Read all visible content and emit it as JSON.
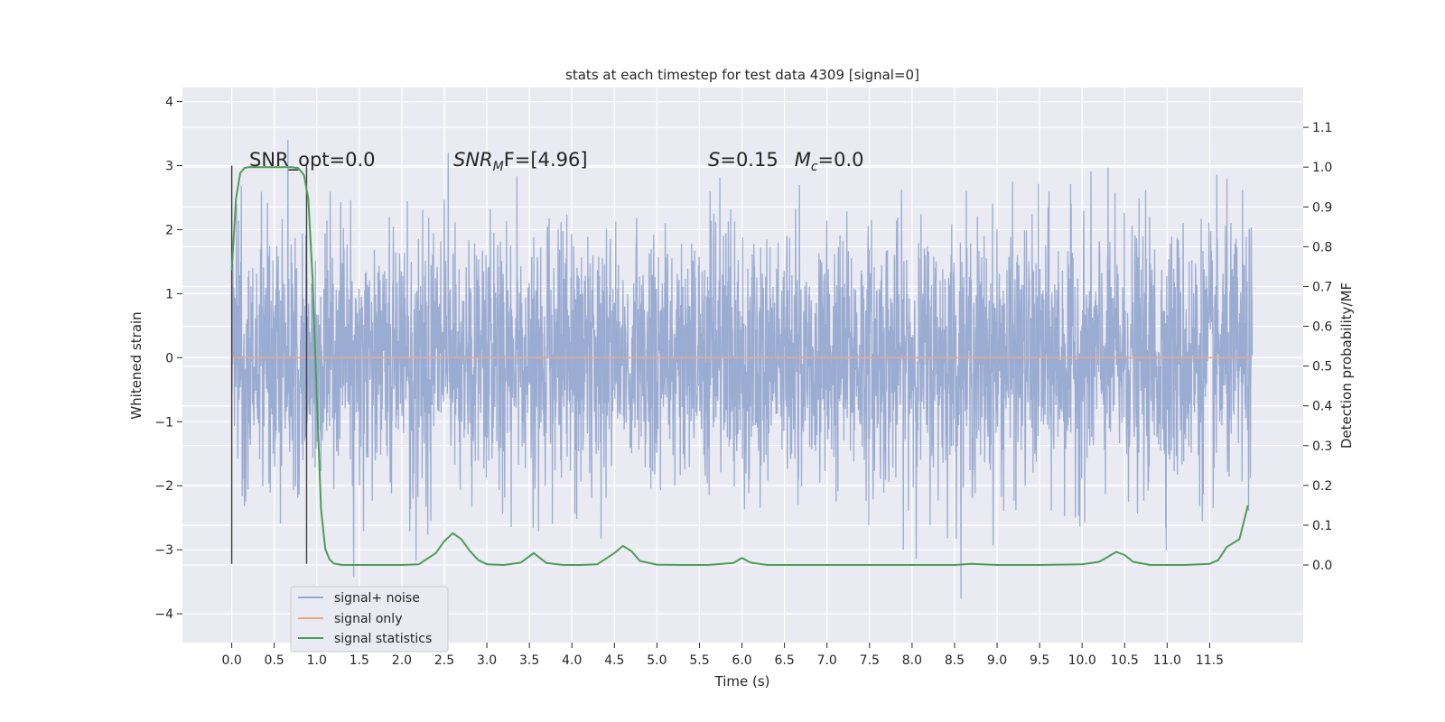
{
  "chart_data": {
    "type": "line",
    "title": "stats at each timestep for test data 4309 [signal=0]",
    "xlabel": "Time (s)",
    "ylabel": "Whitened strain",
    "y2label": "Detection probability/MF",
    "xlim": [
      -0.58,
      12.6
    ],
    "ylim": [
      -4.45,
      4.22
    ],
    "y2lim": [
      -0.195,
      1.2
    ],
    "xticks": [
      0.0,
      0.5,
      1.0,
      1.5,
      2.0,
      2.5,
      3.0,
      3.5,
      4.0,
      4.5,
      5.0,
      5.5,
      6.0,
      6.5,
      7.0,
      7.5,
      8.0,
      8.5,
      9.0,
      9.5,
      10.0,
      10.5,
      11.0,
      11.5
    ],
    "xtick_labels": [
      "0.0",
      "0.5",
      "1.0",
      "1.5",
      "2.0",
      "2.5",
      "3.0",
      "3.5",
      "4.0",
      "4.5",
      "5.0",
      "5.5",
      "6.0",
      "6.5",
      "7.0",
      "7.5",
      "8.0",
      "8.5",
      "9.0",
      "9.5",
      "10.0",
      "10.5",
      "11.0",
      "11.5"
    ],
    "yticks": [
      4,
      3,
      2,
      1,
      0,
      -1,
      -2,
      -3,
      -4
    ],
    "ytick_labels": [
      "4",
      "3",
      "2",
      "1",
      "0",
      "−1",
      "−2",
      "−3",
      "−4"
    ],
    "y2ticks": [
      1.1,
      1.0,
      0.9,
      0.8,
      0.7,
      0.6,
      0.5,
      0.4,
      0.3,
      0.2,
      0.1,
      0.0
    ],
    "y2tick_labels": [
      "1.1",
      "1.0",
      "0.9",
      "0.8",
      "0.7",
      "0.6",
      "0.5",
      "0.4",
      "0.3",
      "0.2",
      "0.1",
      "0.0"
    ],
    "grid": true,
    "legend_position": "lower-left",
    "annotations": {
      "snr_opt": "SNR_opt=0.0",
      "snr_mf": "SNR",
      "snr_mf_sub": "M",
      "snr_mf_rest": "F=[4.96]",
      "s_var": "S",
      "s_val": "=0.15",
      "mc_var": "M",
      "mc_sub": "c",
      "mc_val": "=0.0"
    },
    "markers": [
      {
        "x": 0.0,
        "y_range": [
          -3.22,
          3.0
        ]
      },
      {
        "x": 0.88,
        "y_range": [
          -3.22,
          3.0
        ]
      }
    ],
    "series": [
      {
        "name": "signal+ noise",
        "color": "#97a9d0",
        "axis": "left",
        "kind": "noise",
        "x_range": [
          0.0,
          12.0
        ],
        "typical_amplitude": 1.0,
        "approx_envelope": [
          -4.1,
          3.85
        ]
      },
      {
        "name": "signal only",
        "color": "#e8a98a",
        "axis": "left",
        "kind": "line",
        "x": [
          0.0,
          12.0
        ],
        "values": [
          0.0,
          0.0
        ]
      },
      {
        "name": "signal statistics",
        "color": "#4c9c58",
        "axis": "right",
        "kind": "line",
        "x": [
          0.0,
          0.05,
          0.1,
          0.15,
          0.2,
          0.3,
          0.4,
          0.5,
          0.6,
          0.7,
          0.78,
          0.85,
          0.9,
          0.95,
          1.0,
          1.05,
          1.1,
          1.15,
          1.2,
          1.3,
          1.5,
          1.8,
          2.0,
          2.2,
          2.4,
          2.5,
          2.6,
          2.7,
          2.8,
          2.9,
          3.0,
          3.2,
          3.4,
          3.55,
          3.7,
          3.9,
          4.1,
          4.3,
          4.5,
          4.6,
          4.7,
          4.8,
          5.0,
          5.3,
          5.6,
          5.9,
          6.0,
          6.1,
          6.3,
          6.6,
          6.9,
          7.5,
          8.0,
          8.5,
          8.7,
          9.0,
          9.5,
          10.0,
          10.2,
          10.3,
          10.4,
          10.5,
          10.6,
          10.8,
          11.2,
          11.5,
          11.6,
          11.7,
          11.85,
          11.95
        ],
        "values": [
          0.74,
          0.92,
          0.985,
          0.998,
          1.0,
          1.0,
          1.0,
          1.0,
          1.0,
          1.0,
          0.998,
          0.98,
          0.92,
          0.72,
          0.42,
          0.14,
          0.04,
          0.014,
          0.004,
          0.0,
          0.0,
          0.0,
          0.0,
          0.002,
          0.03,
          0.06,
          0.08,
          0.065,
          0.035,
          0.012,
          0.002,
          0.0,
          0.006,
          0.03,
          0.005,
          0.0,
          0.0,
          0.002,
          0.03,
          0.048,
          0.035,
          0.01,
          0.001,
          0.0,
          0.0,
          0.005,
          0.018,
          0.006,
          0.0,
          0.0,
          0.0,
          0.0,
          0.0,
          0.0,
          0.003,
          0.0,
          0.0,
          0.002,
          0.008,
          0.02,
          0.033,
          0.025,
          0.008,
          0.0,
          0.0,
          0.003,
          0.012,
          0.045,
          0.065,
          0.15
        ]
      }
    ]
  }
}
